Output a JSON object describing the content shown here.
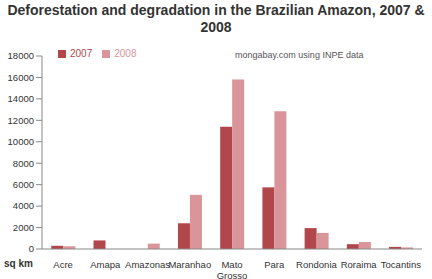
{
  "chart_data": {
    "type": "bar",
    "title": "Deforestation and degradation in the Brazilian Amazon, 2007 & 2008",
    "annotation": "mongabay.com using INPE data",
    "ylabel": "sq km",
    "categories": [
      "Acre",
      "Amapa",
      "Amazonas",
      "Maranhao",
      "Mato Grosso",
      "Para",
      "Rondonia",
      "Roraima",
      "Tocantins"
    ],
    "series": [
      {
        "name": "2007",
        "color": "#b2474b",
        "values": [
          300,
          800,
          0,
          2400,
          11400,
          5750,
          1950,
          450,
          200
        ]
      },
      {
        "name": "2008",
        "color": "#d9959a",
        "values": [
          250,
          0,
          500,
          5050,
          15800,
          12850,
          1500,
          650,
          150
        ]
      }
    ],
    "ylim": [
      0,
      18000
    ],
    "yticks": [
      0,
      2000,
      4000,
      6000,
      8000,
      10000,
      12000,
      14000,
      16000,
      18000
    ],
    "grid": false,
    "legend": "upper left"
  }
}
